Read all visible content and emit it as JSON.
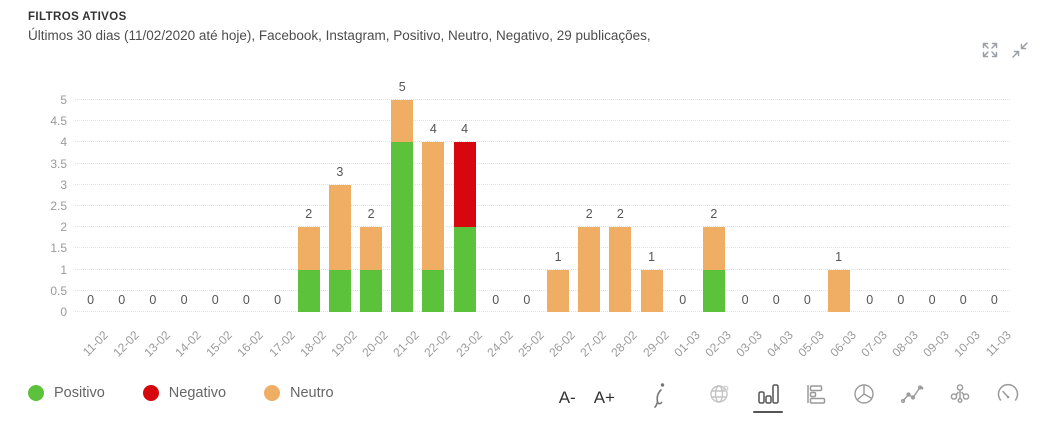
{
  "header": {
    "title": "FILTROS ATIVOS",
    "subtitle": "Últimos 30 dias (11/02/2020 até hoje), Facebook, Instagram, Positivo, Neutro, Negativo, 29 publicações,"
  },
  "window_controls": {
    "icons": [
      "expand-icon",
      "collapse-icon"
    ]
  },
  "chart_data": {
    "type": "bar",
    "stacked": true,
    "title": "",
    "xlabel": "",
    "ylabel": "",
    "ylim": [
      0,
      5
    ],
    "ytick_step": 0.5,
    "yticks": [
      "0",
      "0.5",
      "1",
      "1.5",
      "2",
      "2.5",
      "3",
      "3.5",
      "4",
      "4.5",
      "5"
    ],
    "grid": "horizontal-dotted",
    "legend_position": "bottom-left",
    "value_labels": true,
    "categories": [
      "11-02",
      "12-02",
      "13-02",
      "14-02",
      "15-02",
      "16-02",
      "17-02",
      "18-02",
      "19-02",
      "20-02",
      "21-02",
      "22-02",
      "23-02",
      "24-02",
      "25-02",
      "26-02",
      "27-02",
      "28-02",
      "29-02",
      "01-03",
      "02-03",
      "03-03",
      "04-03",
      "05-03",
      "06-03",
      "07-03",
      "08-03",
      "09-03",
      "10-03",
      "11-03"
    ],
    "series": [
      {
        "name": "Positivo",
        "color": "#5cc23c",
        "values": [
          0,
          0,
          0,
          0,
          0,
          0,
          0,
          1,
          1,
          1,
          4,
          1,
          2,
          0,
          0,
          0,
          0,
          0,
          0,
          0,
          1,
          0,
          0,
          0,
          0,
          0,
          0,
          0,
          0,
          0
        ]
      },
      {
        "name": "Negativo",
        "color": "#d6070e",
        "values": [
          0,
          0,
          0,
          0,
          0,
          0,
          0,
          0,
          0,
          0,
          0,
          0,
          2,
          0,
          0,
          0,
          0,
          0,
          0,
          0,
          0,
          0,
          0,
          0,
          0,
          0,
          0,
          0,
          0,
          0
        ]
      },
      {
        "name": "Neutro",
        "color": "#f0ad64",
        "values": [
          0,
          0,
          0,
          0,
          0,
          0,
          0,
          1,
          2,
          1,
          1,
          3,
          0,
          0,
          0,
          1,
          2,
          2,
          1,
          0,
          1,
          0,
          0,
          0,
          1,
          0,
          0,
          0,
          0,
          0
        ]
      }
    ],
    "totals": [
      0,
      0,
      0,
      0,
      0,
      0,
      0,
      2,
      3,
      2,
      5,
      4,
      4,
      0,
      0,
      1,
      2,
      2,
      1,
      0,
      2,
      0,
      0,
      0,
      1,
      0,
      0,
      0,
      0,
      0
    ],
    "total_publications": 29
  },
  "legend": {
    "items": [
      {
        "label": "Positivo",
        "color": "#5cc23c"
      },
      {
        "label": "Negativo",
        "color": "#d6070e"
      },
      {
        "label": "Neutro",
        "color": "#f0ad64"
      }
    ]
  },
  "controls": {
    "font_decrease": "A-",
    "font_increase": "A+",
    "info_icon": "info-icon",
    "chart_type_icons": [
      "globe-icon",
      "bar-chart-icon",
      "horizontal-bar-chart-icon",
      "pie-chart-icon",
      "line-chart-icon",
      "network-icon",
      "gauge-icon"
    ],
    "selected_chart_type": "bar-chart-icon"
  },
  "colors": {
    "positive": "#5cc23c",
    "negative": "#d6070e",
    "neutral": "#f0ad64",
    "grid": "#e2e2e2",
    "tick_text": "#9a9a9a",
    "value_text": "#555555",
    "icon_gray": "#8f8f8f"
  }
}
